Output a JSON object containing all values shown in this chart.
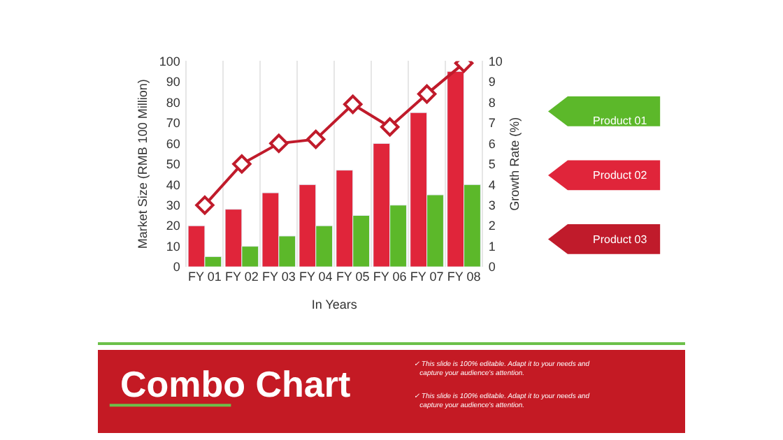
{
  "chart_data": {
    "type": "bar",
    "title": "Combo Chart",
    "xlabel": "In Years",
    "ylabel": "Market Size (RMB 100 Million)",
    "y2label": "Growth Rate (%)",
    "categories": [
      "FY 01",
      "FY 02",
      "FY 03",
      "FY 04",
      "FY 05",
      "FY 06",
      "FY 07",
      "FY 08"
    ],
    "series": [
      {
        "name": "Product 01",
        "color": "#5cb82a",
        "values": [
          5,
          10,
          15,
          20,
          25,
          30,
          35,
          40
        ]
      },
      {
        "name": "Product 02",
        "color": "#e0253a",
        "values": [
          20,
          28,
          36,
          40,
          47,
          60,
          75,
          95
        ]
      },
      {
        "name": "Product 03",
        "color": "#c01b2b",
        "type": "line",
        "axis": "y2",
        "marker": "diamond",
        "values": [
          3,
          5,
          6,
          6.2,
          7.9,
          6.8,
          8.4,
          9.9
        ]
      }
    ],
    "ylim": [
      0,
      100
    ],
    "yticks": [
      0,
      10,
      20,
      30,
      40,
      50,
      60,
      70,
      80,
      90,
      100
    ],
    "y2lim": [
      0,
      10
    ],
    "y2ticks": [
      0,
      1,
      2,
      3,
      4,
      5,
      6,
      7,
      8,
      9,
      10
    ],
    "grid": "x",
    "legend": "right",
    "annotations": [
      "✓ This slide is 100% editable. Adapt it to your needs and capture your audience's attention.",
      "✓ This slide is 100% editable. Adapt it to your needs and capture your audience's attention."
    ]
  }
}
